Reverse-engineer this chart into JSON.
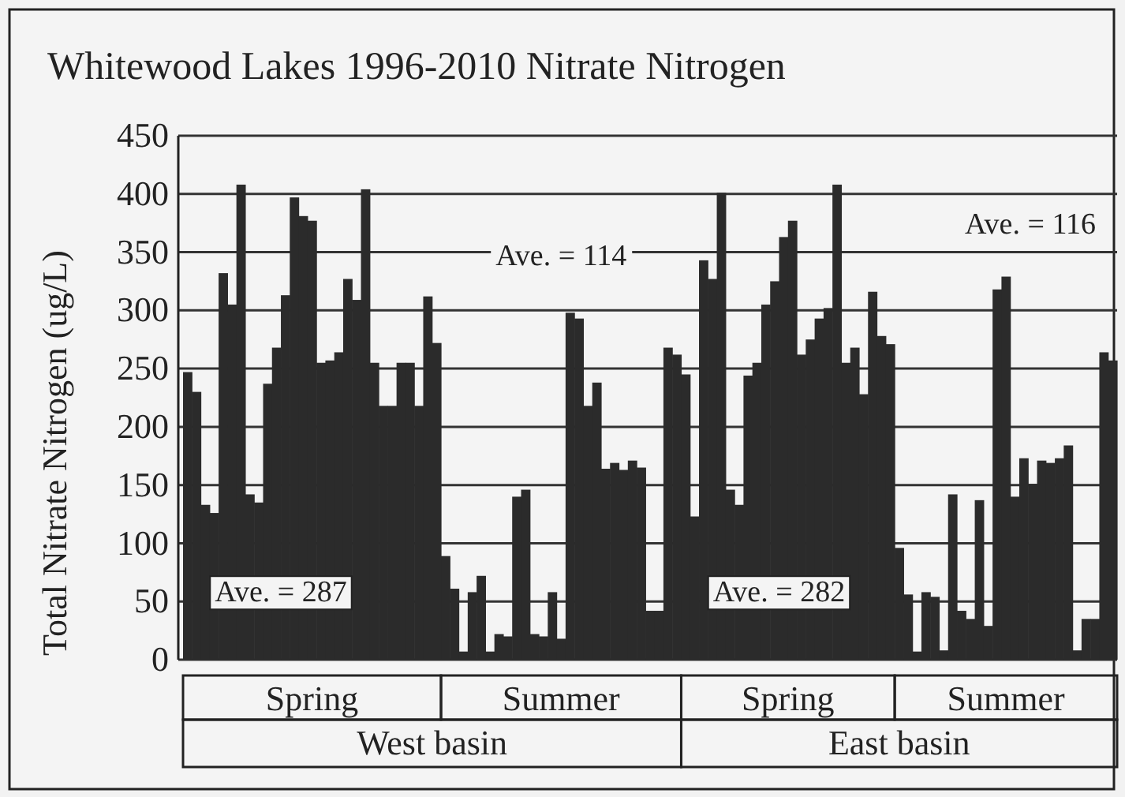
{
  "chart_data": {
    "type": "bar",
    "title": "Whitewood Lakes 1996-2010 Nitrate Nitrogen",
    "ylabel": "Total Nitrate Nitrogen (ug/L)",
    "categories": [
      null,
      null,
      null,
      null,
      null,
      null,
      null,
      null,
      null,
      null,
      null,
      null,
      null,
      null,
      null,
      null,
      null,
      null,
      null,
      null,
      null,
      null,
      null,
      null,
      null,
      null,
      null,
      null,
      null,
      null,
      null,
      null,
      null,
      null,
      null,
      null,
      null,
      null,
      null,
      null,
      null,
      null,
      null,
      null,
      null,
      null,
      null,
      null,
      null,
      null,
      null,
      null,
      null,
      null,
      null,
      null,
      null,
      null,
      null,
      null,
      null,
      null,
      null,
      null,
      null,
      null,
      null,
      null,
      null,
      null,
      null,
      null,
      null,
      null,
      null,
      null,
      null,
      null,
      null,
      null,
      null,
      null,
      null,
      null,
      null,
      null,
      null,
      null,
      null,
      null,
      null,
      null,
      null,
      null,
      null,
      null,
      null,
      null,
      null,
      null,
      null,
      null,
      null,
      null,
      null
    ],
    "series": [
      {
        "color": "#2b2b2b",
        "values": [
          247,
          230,
          133,
          126,
          332,
          305,
          408,
          142,
          135,
          237,
          268,
          313,
          397,
          381,
          377,
          255,
          257,
          264,
          327,
          309,
          404,
          255,
          218,
          218,
          255,
          255,
          218,
          312,
          272,
          null,
          null,
          null,
          null,
          null,
          null,
          null,
          null,
          null,
          null,
          null,
          null,
          null,
          null,
          null,
          null,
          null,
          null,
          null,
          null,
          null,
          null,
          null,
          null,
          null,
          null,
          null,
          null,
          null,
          null,
          null,
          null,
          null,
          null,
          null,
          null,
          null,
          null,
          null,
          null,
          null,
          null,
          null,
          null,
          null,
          null,
          null,
          null,
          null,
          null,
          null,
          null,
          null,
          null,
          null,
          null,
          null,
          null,
          null,
          null,
          null,
          null,
          null,
          null,
          null,
          null,
          null,
          null,
          null,
          null,
          null,
          null,
          null,
          null,
          null,
          null
        ]
      },
      {
        "color": "#2b2b2b",
        "values": [
          null,
          null,
          null,
          null,
          null,
          null,
          null,
          null,
          null,
          null,
          null,
          null,
          null,
          null,
          null,
          null,
          null,
          null,
          null,
          null,
          null,
          null,
          null,
          null,
          null,
          null,
          null,
          null,
          null,
          89,
          61,
          7,
          58,
          72,
          7,
          22,
          20,
          140,
          146,
          22,
          20,
          58,
          18,
          298,
          293,
          218,
          238,
          164,
          169,
          163,
          171,
          165,
          42,
          42,
          268,
          262,
          null,
          null,
          null,
          null,
          null,
          null,
          null,
          null,
          null,
          null,
          null,
          null,
          null,
          null,
          null,
          null,
          null,
          null,
          null,
          null,
          null,
          null,
          null,
          null,
          null,
          null,
          null,
          null,
          null,
          null,
          null,
          null,
          null,
          null,
          null,
          null,
          null,
          null,
          null,
          null,
          null,
          null,
          null,
          null,
          null,
          null,
          null,
          null,
          null
        ]
      },
      {
        "color": "#2b2b2b",
        "values": [
          null,
          null,
          null,
          null,
          null,
          null,
          null,
          null,
          null,
          null,
          null,
          null,
          null,
          null,
          null,
          null,
          null,
          null,
          null,
          null,
          null,
          null,
          null,
          null,
          null,
          null,
          null,
          null,
          null,
          null,
          null,
          null,
          null,
          null,
          null,
          null,
          null,
          null,
          null,
          null,
          null,
          null,
          null,
          null,
          null,
          null,
          null,
          null,
          null,
          null,
          null,
          null,
          null,
          null,
          null,
          null,
          245,
          123,
          343,
          327,
          401,
          146,
          133,
          244,
          255,
          305,
          325,
          363,
          377,
          262,
          275,
          293,
          302,
          408,
          255,
          268,
          228,
          316,
          278,
          271,
          null,
          null,
          null,
          null,
          null,
          null,
          null,
          null,
          null,
          null,
          null,
          null,
          null,
          null,
          null,
          null,
          null,
          null,
          null,
          null,
          null,
          null,
          null,
          null,
          null
        ]
      },
      {
        "color": "#2b2b2b",
        "values": [
          null,
          null,
          null,
          null,
          null,
          null,
          null,
          null,
          null,
          null,
          null,
          null,
          null,
          null,
          null,
          null,
          null,
          null,
          null,
          null,
          null,
          null,
          null,
          null,
          null,
          null,
          null,
          null,
          null,
          null,
          null,
          null,
          null,
          null,
          null,
          null,
          null,
          null,
          null,
          null,
          null,
          null,
          null,
          null,
          null,
          null,
          null,
          null,
          null,
          null,
          null,
          null,
          null,
          null,
          null,
          null,
          null,
          null,
          null,
          null,
          null,
          null,
          null,
          null,
          null,
          null,
          null,
          null,
          null,
          null,
          null,
          null,
          null,
          null,
          null,
          null,
          null,
          null,
          null,
          null,
          96,
          56,
          7,
          58,
          54,
          8,
          142,
          42,
          35,
          137,
          29,
          318,
          329,
          140,
          173,
          151,
          171,
          169,
          173,
          184,
          8,
          35,
          35,
          264,
          257
        ]
      }
    ],
    "ylim": [
      0,
      450
    ],
    "yticks": [
      0,
      50,
      100,
      150,
      200,
      250,
      300,
      350,
      400,
      450
    ],
    "grid": "y",
    "annotations": [
      "Ave. = 287",
      "Ave. = 114",
      "Ave. = 282",
      "Ave. = 116",
      "Spring",
      "Summer",
      "Spring",
      "Summer",
      "West basin",
      "East basin"
    ]
  }
}
